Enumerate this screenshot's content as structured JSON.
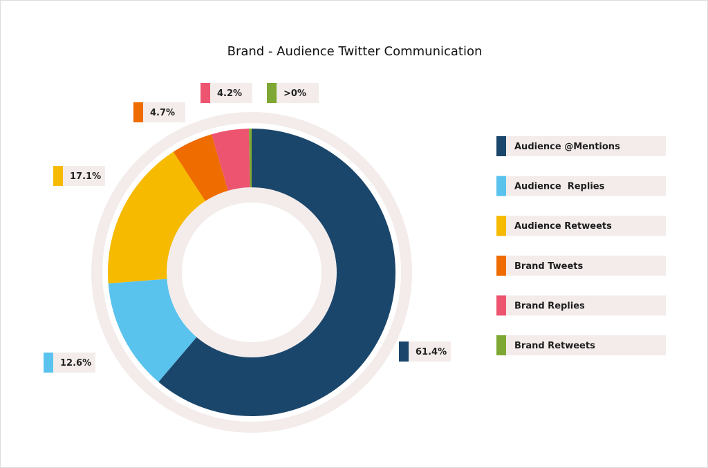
{
  "chart_data": {
    "type": "pie",
    "donut": true,
    "title": "Brand - Audience Twitter Communication",
    "legend_position": "right",
    "slices": [
      {
        "name": "Audience @Mentions",
        "value": 61.4,
        "label": "61.4%",
        "color": "#1b466b"
      },
      {
        "name": "Audience  Replies",
        "value": 12.6,
        "label": "12.6%",
        "color": "#59c3ee"
      },
      {
        "name": "Audience Retweets",
        "value": 17.1,
        "label": "17.1%",
        "color": "#f6ba00"
      },
      {
        "name": "Brand Tweets",
        "value": 4.7,
        "label": "4.7%",
        "color": "#ef6c00"
      },
      {
        "name": "Brand Replies",
        "value": 4.2,
        "label": "4.2%",
        "color": "#ec5470"
      },
      {
        "name": "Brand Retweets",
        "value": 0.3,
        "label": ">0%",
        "color": "#7ea833"
      }
    ]
  },
  "theme": {
    "ring_color": "#f3eceb",
    "label_bg": "#f3eceb"
  }
}
